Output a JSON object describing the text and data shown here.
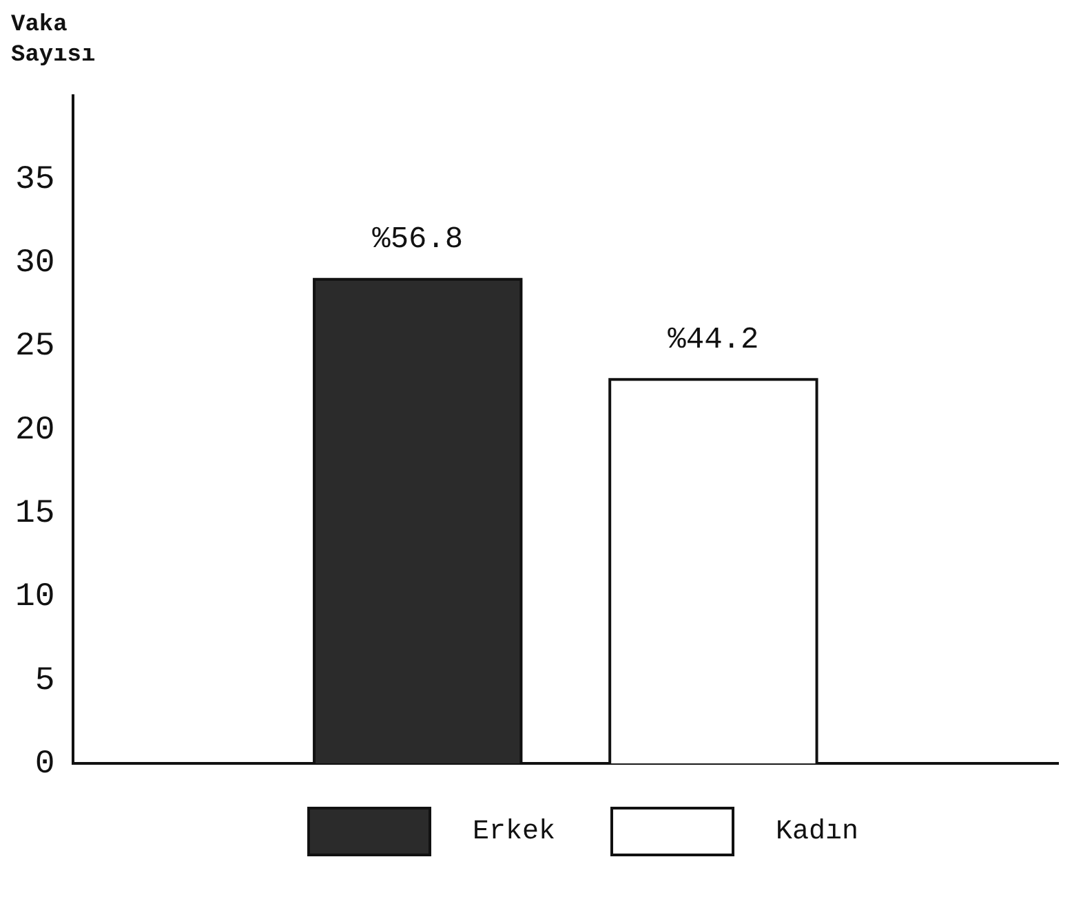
{
  "chart_data": {
    "type": "bar",
    "ylabel": "Vaka Sayısı",
    "categories": [
      null
    ],
    "series": [
      {
        "name": "Erkek",
        "color": "#2b2b2b",
        "values": [
          29
        ]
      },
      {
        "name": "Kadın",
        "color": "#ffffff",
        "values": [
          23
        ]
      }
    ],
    "annotations": [
      "%56.8",
      "%44.2"
    ],
    "ylim": [
      0,
      40
    ],
    "yticks": [
      0,
      5,
      10,
      15,
      20,
      25,
      30,
      35
    ],
    "grid": false,
    "legend": "bottom"
  }
}
